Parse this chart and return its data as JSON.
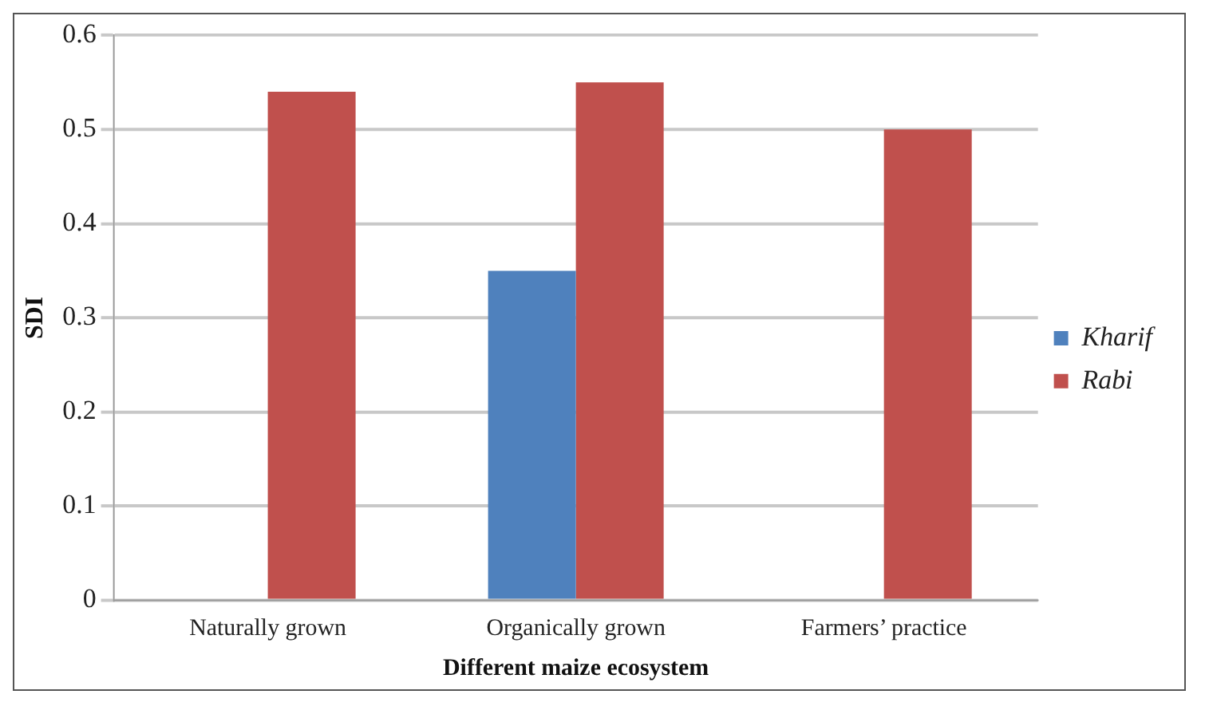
{
  "chart_data": {
    "type": "bar",
    "xlabel": "Different maize ecosystem",
    "ylabel": "SDI",
    "categories": [
      "Naturally grown",
      "Organically grown",
      "Farmers’ practice"
    ],
    "series": [
      {
        "name": "Kharif",
        "color": "#4f81bd",
        "values": [
          0,
          0.35,
          0
        ]
      },
      {
        "name": "Rabi",
        "color": "#c0504d",
        "values": [
          0.54,
          0.55,
          0.5
        ]
      }
    ],
    "ylim": [
      0,
      0.6
    ],
    "yticks": [
      0,
      0.1,
      0.2,
      0.3,
      0.4,
      0.5,
      0.6
    ],
    "grid": "y",
    "legend": "right"
  }
}
